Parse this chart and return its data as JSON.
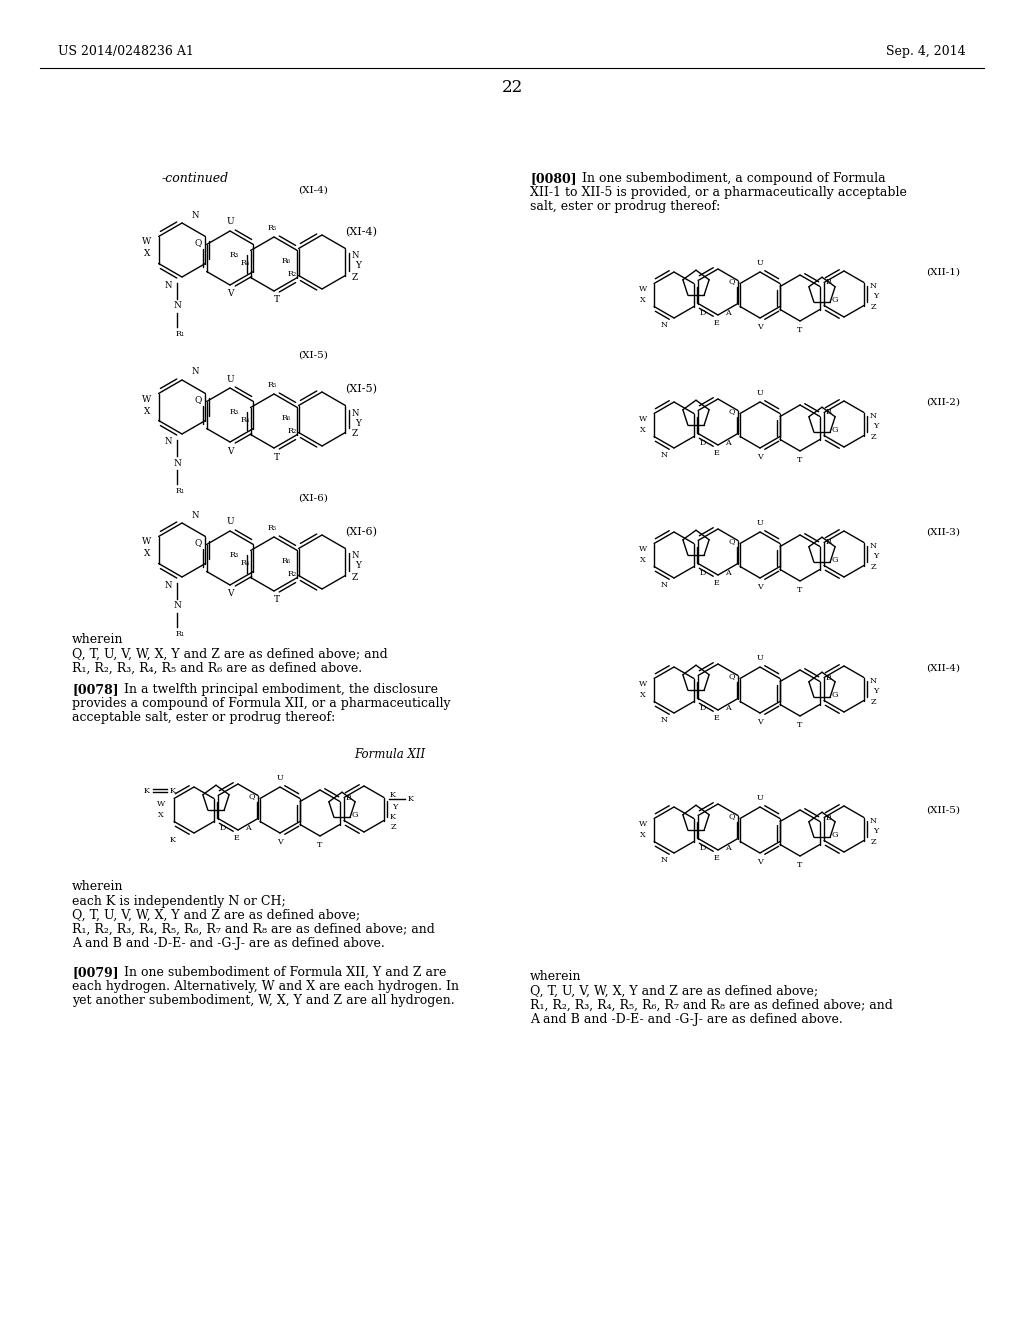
{
  "bg_color": "#ffffff",
  "header_left": "US 2014/0248236 A1",
  "header_right": "Sep. 4, 2014",
  "page_number": "22",
  "continued_label": "-continued",
  "label_xi4": "(XI-4)",
  "label_xi5": "(XI-5)",
  "label_xi6": "(XI-6)",
  "label_xii1": "(XII-1)",
  "label_xii2": "(XII-2)",
  "label_xii3": "(XII-3)",
  "label_xii4": "(XII-4)",
  "label_xii5": "(XII-5)",
  "formula_xii_label": "Formula XII",
  "text_0080_lines": [
    "[0080]   In one subembodiment, a compound of Formula",
    "XII-1 to XII-5 is provided, or a pharmaceutically acceptable",
    "salt, ester or prodrug thereof:"
  ],
  "text_0078_lines": [
    "[0078]   In a twelfth principal embodiment, the disclosure",
    "provides a compound of Formula XII, or a pharmaceutically",
    "acceptable salt, ester or prodrug thereof:"
  ],
  "text_0079_lines": [
    "[0079]   In one subembodiment of Formula XII, Y and Z are",
    "each hydrogen. Alternatively, W and X are each hydrogen. In",
    "yet another subembodiment, W, X, Y and Z are all hydrogen."
  ],
  "wherein_xi_lines": [
    "wherein",
    "Q, T, U, V, W, X, Y and Z are as defined above; and",
    "R₁, R₂, R₃, R₄, R₅ and R₆ are as defined above."
  ],
  "wherein_xii_lines": [
    "wherein",
    "each K is independently N or CH;",
    "Q, T, U, V, W, X, Y and Z are as defined above;",
    "R₁, R₂, R₃, R₄, R₅, R₆, R₇ and R₈ are as defined above; and",
    "A and B and -D-E- and -G-J- are as defined above."
  ],
  "wherein_right_lines": [
    "wherein",
    "Q, T, U, V, W, X, Y and Z are as defined above;",
    "R₁, R₂, R₃, R₄, R₅, R₆, R₇ and R₈ are as defined above; and",
    "A and B and -D-E- and -G-J- are as defined above."
  ]
}
